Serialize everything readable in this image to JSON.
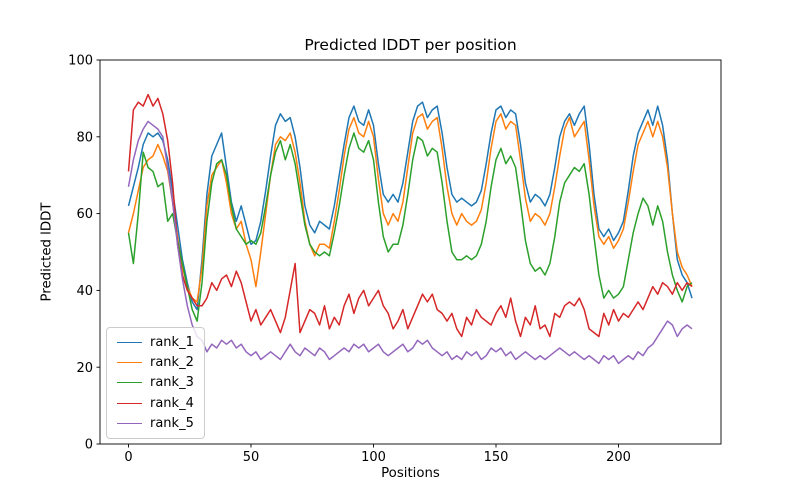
{
  "figure": {
    "title": "Predicted lDDT per position",
    "xlabel": "Positions",
    "ylabel": "Predicted lDDT",
    "background": "#ffffff"
  },
  "axes": {
    "x_tick_labels": [
      "0",
      "50",
      "100",
      "150",
      "200"
    ],
    "x_tick_values": [
      0,
      50,
      100,
      150,
      200
    ],
    "y_tick_labels": [
      "0",
      "20",
      "40",
      "60",
      "80",
      "100"
    ],
    "y_tick_values": [
      0,
      20,
      40,
      60,
      80,
      100
    ],
    "xlim": [
      -11.5,
      241.5
    ],
    "ylim": [
      0,
      100
    ],
    "grid": false,
    "spine_color": "#000000"
  },
  "legend": {
    "location": "lower left",
    "entries": [
      "rank_1",
      "rank_2",
      "rank_3",
      "rank_4",
      "rank_5"
    ]
  },
  "chart_data": {
    "type": "line",
    "title": "Predicted lDDT per position",
    "xlabel": "Positions",
    "ylabel": "Predicted lDDT",
    "x_start": 0,
    "x_step": 2,
    "x_end": 230,
    "ylim": [
      0,
      100
    ],
    "legend_position": "lower left",
    "series": [
      {
        "name": "rank_1",
        "color": "#1f77b4",
        "values": [
          62,
          67,
          72,
          78,
          81,
          80,
          81,
          79,
          74,
          66,
          57,
          48,
          42,
          37,
          35,
          48,
          65,
          75,
          78,
          81,
          72,
          63,
          58,
          62,
          57,
          52,
          53,
          58,
          66,
          75,
          83,
          86,
          84,
          85,
          80,
          72,
          62,
          57,
          55,
          58,
          57,
          56,
          62,
          70,
          78,
          85,
          88,
          84,
          83,
          87,
          83,
          73,
          65,
          63,
          65,
          63,
          68,
          76,
          84,
          88,
          89,
          85,
          87,
          88,
          81,
          72,
          65,
          63,
          64,
          63,
          62,
          63,
          66,
          73,
          81,
          87,
          88,
          85,
          87,
          86,
          78,
          68,
          63,
          65,
          64,
          62,
          65,
          72,
          80,
          84,
          86,
          83,
          86,
          88,
          78,
          65,
          56,
          54,
          56,
          53,
          55,
          58,
          66,
          75,
          81,
          84,
          87,
          83,
          88,
          83,
          74,
          60,
          48,
          44,
          42,
          38
        ]
      },
      {
        "name": "rank_2",
        "color": "#ff7f0e",
        "values": [
          55,
          60,
          66,
          72,
          74,
          75,
          78,
          75,
          71,
          63,
          54,
          46,
          41,
          38,
          37,
          46,
          62,
          70,
          72,
          74,
          68,
          60,
          56,
          58,
          52,
          48,
          41,
          50,
          60,
          70,
          78,
          80,
          79,
          81,
          76,
          68,
          58,
          52,
          49,
          52,
          52,
          51,
          58,
          66,
          75,
          82,
          85,
          81,
          80,
          84,
          80,
          69,
          60,
          57,
          60,
          58,
          63,
          72,
          81,
          85,
          86,
          82,
          84,
          85,
          77,
          67,
          60,
          57,
          60,
          58,
          57,
          58,
          61,
          68,
          77,
          84,
          86,
          82,
          84,
          83,
          74,
          64,
          58,
          60,
          59,
          57,
          60,
          67,
          75,
          82,
          85,
          80,
          82,
          84,
          74,
          62,
          54,
          52,
          54,
          51,
          53,
          56,
          63,
          71,
          78,
          81,
          84,
          80,
          84,
          80,
          72,
          60,
          50,
          46,
          44,
          41
        ]
      },
      {
        "name": "rank_3",
        "color": "#2ca02c",
        "values": [
          55,
          47,
          60,
          76,
          72,
          71,
          67,
          68,
          58,
          60,
          53,
          47,
          41,
          35,
          32,
          42,
          58,
          68,
          73,
          74,
          70,
          62,
          56,
          54,
          52,
          53,
          52,
          55,
          62,
          70,
          76,
          79,
          74,
          78,
          73,
          65,
          57,
          52,
          50,
          49,
          50,
          49,
          55,
          62,
          70,
          77,
          81,
          77,
          76,
          79,
          74,
          63,
          54,
          50,
          52,
          52,
          57,
          65,
          74,
          80,
          79,
          75,
          77,
          76,
          68,
          58,
          50,
          48,
          48,
          49,
          48,
          49,
          52,
          58,
          67,
          74,
          77,
          73,
          75,
          72,
          63,
          53,
          47,
          45,
          46,
          44,
          47,
          54,
          63,
          68,
          70,
          72,
          71,
          73,
          65,
          54,
          44,
          38,
          40,
          38,
          39,
          41,
          48,
          55,
          60,
          64,
          62,
          57,
          62,
          58,
          50,
          44,
          40,
          37,
          41,
          42
        ]
      },
      {
        "name": "rank_4",
        "color": "#d62728",
        "values": [
          71,
          87,
          89,
          88,
          91,
          88,
          90,
          86,
          79,
          68,
          52,
          44,
          40,
          38,
          36,
          36,
          38,
          42,
          40,
          43,
          44,
          41,
          45,
          42,
          37,
          32,
          35,
          31,
          33,
          35,
          32,
          29,
          33,
          40,
          47,
          29,
          32,
          35,
          34,
          31,
          36,
          30,
          33,
          31,
          36,
          39,
          34,
          38,
          40,
          36,
          38,
          40,
          36,
          34,
          30,
          32,
          35,
          30,
          33,
          36,
          39,
          37,
          39,
          35,
          34,
          32,
          34,
          30,
          28,
          33,
          31,
          35,
          33,
          32,
          31,
          34,
          36,
          33,
          38,
          32,
          28,
          33,
          31,
          36,
          30,
          31,
          28,
          34,
          33,
          36,
          37,
          36,
          38,
          35,
          30,
          29,
          28,
          34,
          31,
          35,
          32,
          34,
          33,
          35,
          37,
          35,
          38,
          41,
          39,
          42,
          41,
          39,
          42,
          40,
          42,
          41
        ]
      },
      {
        "name": "rank_5",
        "color": "#9467bd",
        "values": [
          67,
          74,
          79,
          82,
          84,
          83,
          82,
          80,
          72,
          63,
          52,
          43,
          36,
          31,
          28,
          27,
          24,
          26,
          25,
          27,
          26,
          27,
          25,
          26,
          24,
          23,
          24,
          22,
          23,
          24,
          23,
          22,
          24,
          26,
          24,
          23,
          25,
          24,
          23,
          25,
          24,
          22,
          23,
          24,
          25,
          24,
          26,
          25,
          26,
          24,
          25,
          26,
          24,
          23,
          24,
          25,
          26,
          24,
          25,
          27,
          26,
          27,
          25,
          24,
          23,
          24,
          22,
          23,
          22,
          24,
          23,
          24,
          22,
          23,
          25,
          24,
          25,
          23,
          24,
          22,
          23,
          24,
          23,
          22,
          23,
          22,
          23,
          24,
          25,
          24,
          23,
          24,
          23,
          22,
          23,
          22,
          21,
          23,
          22,
          23,
          21,
          22,
          23,
          22,
          24,
          23,
          25,
          26,
          28,
          30,
          32,
          31,
          28,
          30,
          31,
          30
        ]
      }
    ]
  }
}
